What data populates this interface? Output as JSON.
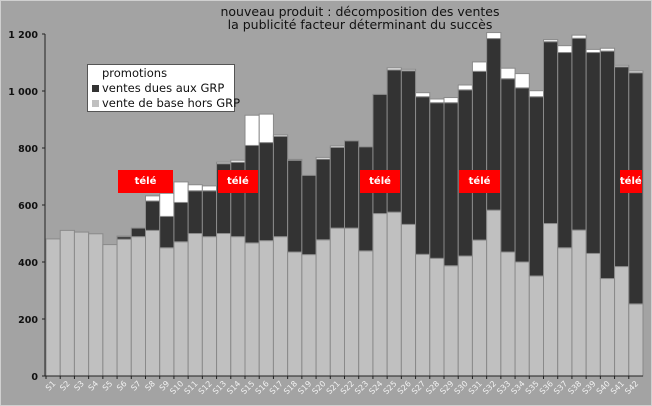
{
  "chart_data": {
    "type": "bar",
    "stacked": true,
    "title": [
      "nouveau produit : décomposition des ventes",
      "la publicité facteur déterminant du succès"
    ],
    "xlabel": "",
    "ylabel": "",
    "ylim": [
      0,
      1200
    ],
    "yticks": [
      0,
      200,
      400,
      600,
      800,
      1000,
      1200
    ],
    "ytick_labels": [
      "0",
      "200",
      "400",
      "600",
      "800",
      "1 000",
      "1 200"
    ],
    "grid": false,
    "legend_position": "top-left",
    "categories": [
      "S1",
      "S2",
      "S3",
      "S4",
      "S5",
      "S6",
      "S7",
      "S8",
      "S9",
      "S10",
      "S11",
      "S12",
      "S13",
      "S14",
      "S15",
      "S16",
      "S17",
      "S18",
      "S19",
      "S20",
      "S21",
      "S22",
      "S23",
      "S24",
      "S25",
      "S26",
      "S27",
      "S28",
      "S29",
      "S30",
      "S31",
      "S32",
      "S33",
      "S34",
      "S35",
      "S36",
      "S37",
      "S38",
      "S39",
      "S40",
      "S41",
      "S42"
    ],
    "series": [
      {
        "name": "vente de base hors GRP",
        "color": "#c0c0c0",
        "values": [
          481,
          511,
          505,
          499,
          461,
          480,
          489,
          511,
          450,
          471,
          500,
          489,
          500,
          489,
          467,
          475,
          489,
          435,
          426,
          478,
          519,
          519,
          439,
          570,
          575,
          532,
          427,
          413,
          387,
          421,
          477,
          582,
          435,
          400,
          351,
          535,
          450,
          512,
          430,
          342,
          384,
          253
        ]
      },
      {
        "name": "ventes dues aux GRP",
        "color": "#333333",
        "values": [
          0,
          0,
          0,
          0,
          0,
          9,
          30,
          103,
          110,
          138,
          150,
          161,
          245,
          261,
          342,
          344,
          352,
          322,
          278,
          283,
          283,
          306,
          365,
          418,
          499,
          539,
          553,
          546,
          572,
          583,
          592,
          602,
          608,
          611,
          629,
          638,
          685,
          673,
          705,
          798,
          701,
          811
        ]
      },
      {
        "name": "promotions",
        "color": "#ffffff",
        "values": [
          0,
          0,
          0,
          0,
          0,
          2,
          0,
          18,
          81,
          72,
          21,
          17,
          5,
          7,
          106,
          100,
          5,
          3,
          0,
          6,
          5,
          0,
          0,
          0,
          7,
          5,
          14,
          13,
          18,
          17,
          33,
          21,
          37,
          50,
          21,
          7,
          24,
          11,
          11,
          10,
          5,
          6
        ]
      }
    ],
    "annotations": [
      {
        "text": "télé",
        "from": "S6",
        "to": "S9",
        "color": "#ff0000"
      },
      {
        "text": "télé",
        "from": "S13",
        "to": "S15",
        "color": "#ff0000"
      },
      {
        "text": "télé",
        "from": "S23",
        "to": "S25",
        "color": "#ff0000"
      },
      {
        "text": "télé",
        "from": "S30",
        "to": "S32",
        "color": "#ff0000"
      },
      {
        "text": "télé",
        "from": "S41",
        "to": "S42",
        "color": "#ff0000"
      }
    ]
  },
  "legend": {
    "promotions": "promotions",
    "grp": "ventes dues aux GRP",
    "base": "vente de base hors GRP"
  }
}
